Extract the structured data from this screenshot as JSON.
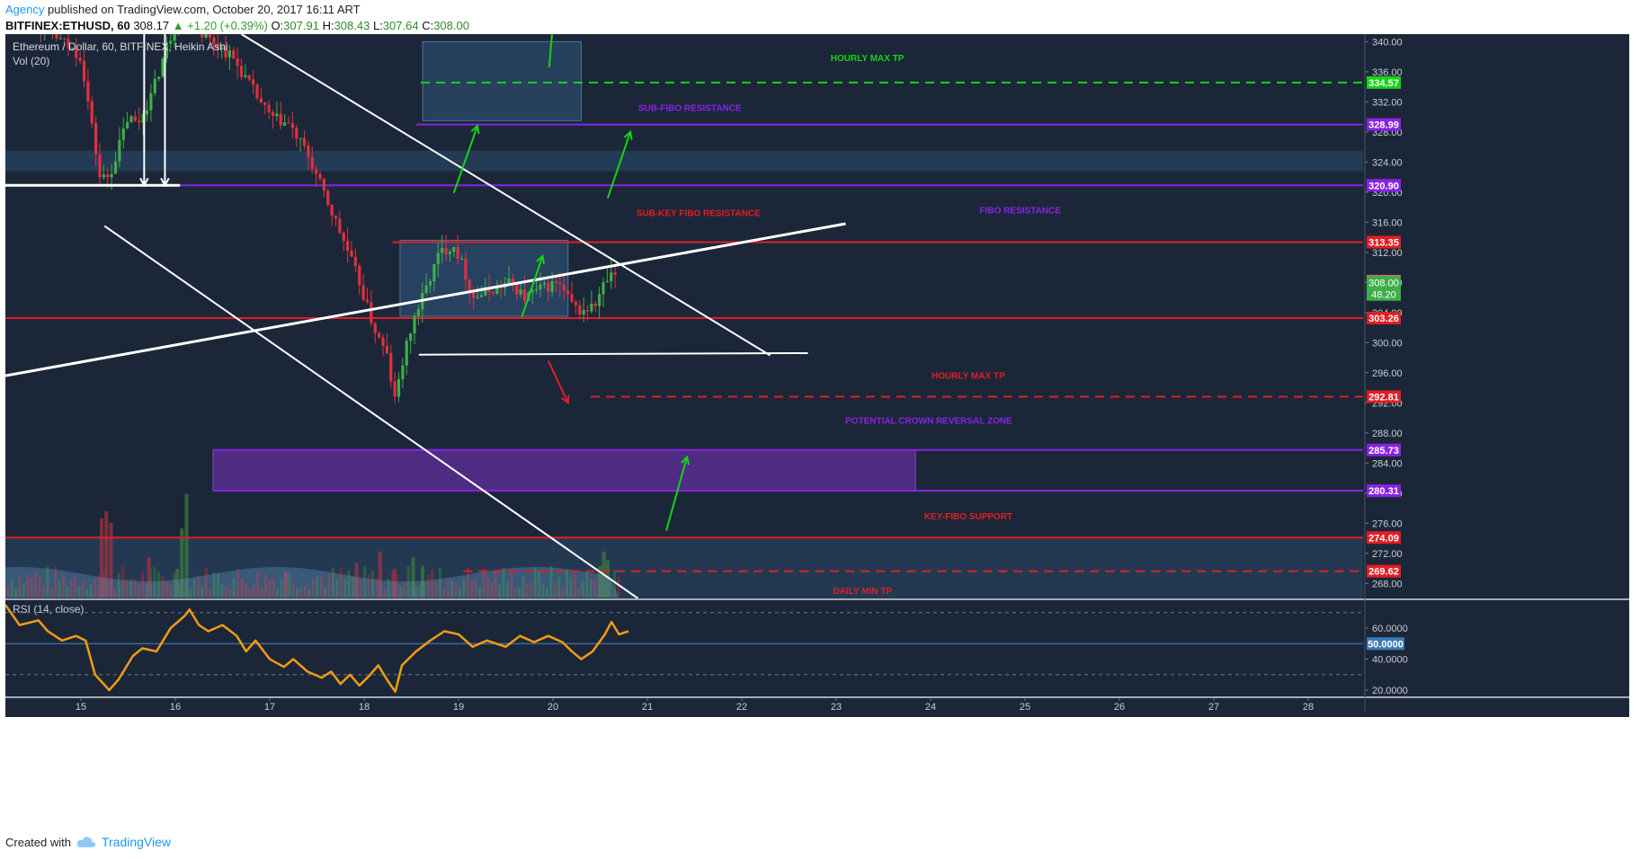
{
  "header": {
    "publisher": "Agency",
    "published_text": "published on TradingView.com, October 20, 2017 16:11 ART",
    "symbol": "BITFINEX:ETHUSD, 60",
    "last": "308.17",
    "change": "▲ +1.20 (+0.39%)",
    "o_label": "O:",
    "o": "307.91",
    "h_label": "H:",
    "h": "308.43",
    "l_label": "L:",
    "l": "307.64",
    "c_label": "C:",
    "c": "308.00"
  },
  "pane_titles": {
    "main": "Ethereum / Dollar, 60, BITFINEX, Heikin Ashi",
    "volume": "Vol (20)",
    "rsi": "RSI (14, close)"
  },
  "footer": {
    "created_with": "Created with",
    "brand": "TradingView"
  },
  "colors": {
    "background": "#1b2738",
    "bull": "#3fae49",
    "bear": "#e0303f",
    "resistance_red": "#e21d24",
    "fibo_purple": "#8a22e6",
    "tp_green": "#15d415",
    "rsi_orange": "#f39c12",
    "trendline_white": "#ffffff"
  },
  "chart_data": {
    "type": "candlestick",
    "symbol": "ETHUSD",
    "x_tick_labels": [
      "15",
      "16",
      "17",
      "18",
      "19",
      "20",
      "21",
      "22",
      "23",
      "24",
      "25",
      "26",
      "27",
      "28"
    ],
    "y_axis": {
      "ylim": [
        266.0,
        341.0
      ],
      "ticks": [
        "340.00",
        "336.00",
        "332.00",
        "328.00",
        "324.00",
        "320.00",
        "316.00",
        "312.00",
        "308.00",
        "304.00",
        "300.00",
        "296.00",
        "292.00",
        "288.00",
        "284.00",
        "280.00",
        "276.00",
        "272.00",
        "268.00"
      ]
    },
    "levels": [
      {
        "price": 334.57,
        "label": "334.57",
        "style": "dashed",
        "color": "#15d415"
      },
      {
        "price": 328.99,
        "label": "328.99",
        "style": "solid",
        "color": "#8a22e6"
      },
      {
        "price": 320.9,
        "label": "320.90",
        "style": "solid",
        "color": "#8a22e6"
      },
      {
        "price": 313.35,
        "label": "313.35",
        "style": "solid",
        "color": "#e21d24"
      },
      {
        "price": 303.26,
        "label": "303.26",
        "style": "solid",
        "color": "#e21d24"
      },
      {
        "price": 292.81,
        "label": "292.81",
        "style": "dashed",
        "color": "#e21d24"
      },
      {
        "price": 285.73,
        "label": "285.73",
        "style": "solid",
        "color": "#8a22e6"
      },
      {
        "price": 280.31,
        "label": "280.31",
        "style": "solid",
        "color": "#8a22e6"
      },
      {
        "price": 274.09,
        "label": "274.09",
        "style": "solid",
        "color": "#e21d24"
      },
      {
        "price": 269.62,
        "label": "269.62",
        "style": "dashed",
        "color": "#e21d24"
      }
    ],
    "price_tags": [
      {
        "price": 308.17,
        "label": "308.17",
        "color": "#e2626a"
      },
      {
        "price": 308.0,
        "label": "308.00",
        "color": "#3fae49"
      },
      {
        "price": 306.4,
        "label": "48.20",
        "color": "#3fae49"
      }
    ],
    "annotations": [
      {
        "text": "HOURLY MAX TP",
        "color": "#15d415",
        "day": 23.33,
        "price": 337.4
      },
      {
        "text": "SUB-FIBO RESISTANCE",
        "color": "#8a22e6",
        "day": 21.45,
        "price": 330.8
      },
      {
        "text": "SUB-KEY FIBO RESISTANCE",
        "color": "#e21d24",
        "day": 21.54,
        "price": 316.8
      },
      {
        "text": "FIBO RESISTANCE",
        "color": "#8a22e6",
        "day": 24.95,
        "price": 317.2
      },
      {
        "text": "HOURLY MAX TP",
        "color": "#e21d24",
        "day": 24.4,
        "price": 295.2
      },
      {
        "text": "POTENTIAL CROWN REVERSAL ZONE",
        "color": "#8a22e6",
        "day": 23.98,
        "price": 289.2
      },
      {
        "text": "KEY-FIBO SUPPORT",
        "color": "#e21d24",
        "day": 24.4,
        "price": 276.5
      },
      {
        "text": "DAILY MIN TP",
        "color": "#e21d24",
        "day": 23.28,
        "price": 266.6
      }
    ],
    "zones": [
      {
        "name": "supply-box",
        "x0": 18.62,
        "x1": 20.3,
        "y0": 329.5,
        "y1": 340.0
      },
      {
        "name": "resistance-band",
        "x0": 14.2,
        "x1": 28.6,
        "y0": 322.8,
        "y1": 325.5
      },
      {
        "name": "range-box",
        "x0": 18.38,
        "x1": 20.16,
        "y0": 303.5,
        "y1": 313.6
      },
      {
        "name": "reversal-zone",
        "x0": 16.4,
        "x1": 23.84,
        "y0": 280.31,
        "y1": 285.73
      },
      {
        "name": "lower-band",
        "x0": 14.2,
        "x1": 28.6,
        "y0": 266.0,
        "y1": 274.09
      }
    ],
    "trendlines": [
      {
        "name": "upper-channel",
        "x0": 16.7,
        "y0": 341.0,
        "x1": 22.3,
        "y1": 298.3
      },
      {
        "name": "lower-channel",
        "x0": 15.25,
        "y0": 315.5,
        "x1": 20.9,
        "y1": 266.0
      },
      {
        "name": "rising-support",
        "x0": 14.2,
        "y0": 295.6,
        "x1": 23.1,
        "y1": 315.8
      },
      {
        "name": "range-floor",
        "x0": 18.58,
        "y0": 298.4,
        "x1": 22.7,
        "y1": 298.6
      },
      {
        "name": "left-base",
        "x0": 14.2,
        "y0": 320.9,
        "x1": 16.05,
        "y1": 320.9
      }
    ],
    "arrows": [
      {
        "color": "#15d415",
        "x0": 18.95,
        "y0": 319.9,
        "x1": 19.2,
        "y1": 328.8
      },
      {
        "color": "#15d415",
        "x0": 20.58,
        "y0": 319.2,
        "x1": 20.82,
        "y1": 328.0
      },
      {
        "color": "#15d415",
        "x0": 19.67,
        "y0": 303.4,
        "x1": 19.89,
        "y1": 311.5
      },
      {
        "color": "#15d415",
        "x0": 21.2,
        "y0": 275.0,
        "x1": 21.42,
        "y1": 284.8
      },
      {
        "color": "#15d415",
        "x0": 19.96,
        "y0": 336.6,
        "x1": 20.0,
        "y1": 342.5
      },
      {
        "color": "#e21d24",
        "x0": 19.95,
        "y0": 297.6,
        "x1": 20.16,
        "y1": 292.0
      },
      {
        "color": "#ffffff",
        "x0": 15.67,
        "y0": 341.0,
        "x1": 15.67,
        "y1": 320.9
      },
      {
        "color": "#ffffff",
        "x0": 15.89,
        "y0": 341.0,
        "x1": 15.89,
        "y1": 320.9
      }
    ],
    "price_path": [
      [
        14.2,
        345
      ],
      [
        14.6,
        342
      ],
      [
        15.0,
        338
      ],
      [
        15.1,
        330
      ],
      [
        15.2,
        322
      ],
      [
        15.3,
        322
      ],
      [
        15.4,
        326
      ],
      [
        15.5,
        330
      ],
      [
        15.6,
        329
      ],
      [
        15.75,
        333
      ],
      [
        15.9,
        339
      ],
      [
        16.05,
        344
      ],
      [
        16.3,
        341
      ],
      [
        16.6,
        338
      ],
      [
        16.8,
        334
      ],
      [
        17.0,
        330
      ],
      [
        17.2,
        329
      ],
      [
        17.4,
        325
      ],
      [
        17.6,
        319
      ],
      [
        17.8,
        313
      ],
      [
        17.95,
        308
      ],
      [
        18.1,
        302
      ],
      [
        18.25,
        298
      ],
      [
        18.32,
        292
      ],
      [
        18.4,
        297
      ],
      [
        18.52,
        303
      ],
      [
        18.65,
        307
      ],
      [
        18.8,
        312
      ],
      [
        18.95,
        313
      ],
      [
        19.05,
        310
      ],
      [
        19.15,
        306
      ],
      [
        19.35,
        307
      ],
      [
        19.55,
        308
      ],
      [
        19.7,
        306
      ],
      [
        19.85,
        307
      ],
      [
        20.05,
        308
      ],
      [
        20.2,
        305
      ],
      [
        20.3,
        304
      ],
      [
        20.45,
        305
      ],
      [
        20.55,
        308
      ],
      [
        20.65,
        309
      ],
      [
        20.7,
        308.17
      ]
    ],
    "volume": {
      "scale_max": 100,
      "bars": [
        [
          15.2,
          55
        ],
        [
          15.25,
          60
        ],
        [
          15.3,
          52
        ],
        [
          15.7,
          28
        ],
        [
          16.0,
          20
        ],
        [
          16.05,
          48
        ],
        [
          16.1,
          72
        ],
        [
          17.15,
          18
        ],
        [
          17.9,
          24
        ],
        [
          18.15,
          32
        ],
        [
          18.3,
          20
        ],
        [
          18.5,
          28
        ],
        [
          18.6,
          22
        ],
        [
          20.48,
          22
        ],
        [
          20.52,
          32
        ],
        [
          20.56,
          26
        ]
      ]
    },
    "rsi": {
      "ylim": [
        16.0,
        78.0
      ],
      "ticks": [
        "60.0000",
        "40.0000",
        "20.0000"
      ],
      "current_label": "50.0000",
      "current_value": 50.0,
      "overbought": 70,
      "oversold": 30,
      "values": [
        [
          14.2,
          75
        ],
        [
          14.35,
          62
        ],
        [
          14.55,
          65
        ],
        [
          14.65,
          58
        ],
        [
          14.8,
          52
        ],
        [
          14.95,
          55
        ],
        [
          15.05,
          52
        ],
        [
          15.15,
          30
        ],
        [
          15.3,
          20
        ],
        [
          15.4,
          27
        ],
        [
          15.55,
          42
        ],
        [
          15.65,
          47
        ],
        [
          15.8,
          45
        ],
        [
          15.95,
          60
        ],
        [
          16.1,
          68
        ],
        [
          16.15,
          72
        ],
        [
          16.25,
          62
        ],
        [
          16.35,
          58
        ],
        [
          16.5,
          62
        ],
        [
          16.65,
          55
        ],
        [
          16.75,
          45
        ],
        [
          16.85,
          52
        ],
        [
          17.0,
          40
        ],
        [
          17.15,
          35
        ],
        [
          17.25,
          40
        ],
        [
          17.4,
          32
        ],
        [
          17.55,
          28
        ],
        [
          17.65,
          32
        ],
        [
          17.75,
          24
        ],
        [
          17.85,
          30
        ],
        [
          17.95,
          23
        ],
        [
          18.05,
          29
        ],
        [
          18.15,
          36
        ],
        [
          18.25,
          26
        ],
        [
          18.33,
          19
        ],
        [
          18.4,
          36
        ],
        [
          18.55,
          45
        ],
        [
          18.7,
          52
        ],
        [
          18.85,
          58
        ],
        [
          19.0,
          56
        ],
        [
          19.15,
          48
        ],
        [
          19.3,
          52
        ],
        [
          19.5,
          48
        ],
        [
          19.65,
          55
        ],
        [
          19.8,
          51
        ],
        [
          19.95,
          55
        ],
        [
          20.1,
          51
        ],
        [
          20.2,
          45
        ],
        [
          20.3,
          40
        ],
        [
          20.42,
          45
        ],
        [
          20.55,
          56
        ],
        [
          20.62,
          64
        ],
        [
          20.7,
          56
        ],
        [
          20.8,
          58
        ]
      ]
    }
  }
}
